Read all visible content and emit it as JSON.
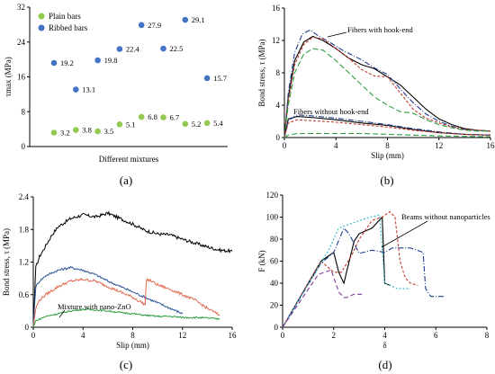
{
  "chart_data": [
    {
      "type": "scatter",
      "panel": "(a)",
      "caption": "(a)",
      "ylabel": "τmax (MPa)",
      "xlabel": "Different mixtures",
      "ylim": [
        0,
        32
      ],
      "yticks": [
        "0",
        "8",
        "16",
        "24",
        "32"
      ],
      "legend": "top-left",
      "series": [
        {
          "name": "Plain bars",
          "color": "#92c94f",
          "values": [
            3.2,
            3.8,
            3.5,
            5.1,
            6.8,
            6.7,
            5.2,
            5.4
          ],
          "labels": [
            "3.2",
            "3.8",
            "3.5",
            "5.1",
            "6.8",
            "6.7",
            "5.2",
            "5.4"
          ]
        },
        {
          "name": "Ribbed bars",
          "color": "#4472c4",
          "values": [
            19.2,
            13.1,
            19.8,
            22.4,
            27.9,
            22.5,
            29.1,
            15.7
          ],
          "labels": [
            "19.2",
            "13.1",
            "19.8",
            "22.4",
            "27.9",
            "22.5",
            "29.1",
            "15.7"
          ]
        }
      ]
    },
    {
      "type": "line",
      "panel": "(b)",
      "caption": "(b)",
      "ylabel": "Bond stress, τ (MPa)",
      "xlabel": "Slip (mm)",
      "xlim": [
        0,
        16
      ],
      "ylim": [
        0,
        16
      ],
      "xticks": [
        "0",
        "4",
        "8",
        "12",
        "16"
      ],
      "yticks": [
        "0",
        "4",
        "8",
        "12",
        "16"
      ],
      "annotations": [
        "Fibers with hook-end",
        "Fibers without hook-end"
      ],
      "series": [
        {
          "color": "#000000",
          "dash": "",
          "x": [
            0,
            0.3,
            0.8,
            1.5,
            2.2,
            3,
            4,
            5,
            6,
            7,
            8,
            9,
            10,
            11,
            12,
            13,
            14,
            15,
            16
          ],
          "y": [
            0,
            5,
            9.5,
            11.8,
            12.5,
            12,
            11,
            9.8,
            9,
            8.5,
            7.5,
            6.5,
            5,
            3.5,
            2.3,
            1.6,
            1.1,
            0.9,
            0.8
          ]
        },
        {
          "color": "#1f3b8c",
          "dash": "6 2 1 2",
          "x": [
            0,
            0.3,
            0.8,
            1.4,
            2,
            2.6,
            3.5,
            4.5,
            6,
            7,
            8,
            9,
            10,
            11,
            12,
            13,
            14,
            15,
            16
          ],
          "y": [
            0,
            5.5,
            10.5,
            12.8,
            13.3,
            12.6,
            11.8,
            10.8,
            9.6,
            8.6,
            7.8,
            6,
            4.3,
            2.9,
            2,
            1.4,
            1,
            0.9,
            0.8
          ]
        },
        {
          "color": "#c0392b",
          "dash": "3 2",
          "x": [
            0,
            0.3,
            0.8,
            1.5,
            2.2,
            3,
            4,
            5,
            6,
            7,
            8,
            9,
            10,
            11,
            12,
            13,
            14,
            15,
            16
          ],
          "y": [
            0,
            4.5,
            9,
            11.5,
            12.4,
            12.2,
            11,
            9.8,
            8.4,
            7.6,
            7.5,
            5.5,
            3.5,
            2.4,
            1.8,
            1.3,
            1,
            0.9,
            0.8
          ]
        },
        {
          "color": "#2e9e3e",
          "dash": "6 3",
          "x": [
            0,
            0.3,
            0.8,
            1.5,
            2.2,
            3,
            4,
            5,
            6,
            7,
            8,
            9,
            10,
            11,
            12,
            13,
            14,
            15,
            16
          ],
          "y": [
            0,
            4,
            8,
            10.3,
            11,
            10.8,
            9.5,
            8,
            6.5,
            5,
            4,
            3.2,
            3,
            2.2,
            1.6,
            1.2,
            0.9,
            0.8,
            0.8
          ]
        },
        {
          "color": "#000000",
          "dash": "",
          "x": [
            0,
            0.3,
            1,
            2,
            4,
            6,
            8,
            10,
            12,
            14,
            16
          ],
          "y": [
            0,
            2.3,
            2.6,
            2.5,
            2.2,
            1.8,
            1.5,
            1,
            0.6,
            0.4,
            0.3
          ]
        },
        {
          "color": "#1f3b8c",
          "dash": "6 2 1 2",
          "x": [
            0,
            0.3,
            1,
            2,
            4,
            6,
            8,
            10,
            12,
            14,
            16
          ],
          "y": [
            0,
            2.1,
            2.8,
            2.7,
            2.4,
            2,
            1.6,
            1.1,
            0.7,
            0.4,
            0.3
          ]
        },
        {
          "color": "#c0392b",
          "dash": "3 2",
          "x": [
            0,
            0.3,
            1,
            2,
            4,
            6,
            8,
            10,
            12,
            14,
            16
          ],
          "y": [
            0,
            1.8,
            2.2,
            2.1,
            1.9,
            1.6,
            1.3,
            0.9,
            0.6,
            0.4,
            0.3
          ]
        },
        {
          "color": "#2e9e3e",
          "dash": "6 3",
          "x": [
            0,
            0.3,
            1,
            2,
            4,
            6,
            8,
            10,
            12,
            14,
            16
          ],
          "y": [
            0,
            0.3,
            0.5,
            0.5,
            0.5,
            0.5,
            0.4,
            0.3,
            0.2,
            0.15,
            0.1
          ]
        }
      ]
    },
    {
      "type": "line",
      "panel": "(c)",
      "caption": "(c)",
      "ylabel": "Bond stress, τ (MPa)",
      "xlabel": "Slip (mm)",
      "xlim": [
        0,
        16
      ],
      "ylim": [
        0,
        2.4
      ],
      "xticks": [
        "0",
        "4",
        "8",
        "12",
        "16"
      ],
      "yticks": [
        "0",
        "0.6",
        "1.2",
        "1.8",
        "2.4"
      ],
      "annotations": [
        "Mixture with nano-ZnO"
      ],
      "series": [
        {
          "color": "#000000",
          "jitter": 0.03,
          "x": [
            0,
            0.2,
            0.5,
            1,
            1.5,
            2,
            3,
            4,
            5,
            6,
            7,
            8,
            9,
            10,
            11,
            12,
            13,
            14,
            15,
            16
          ],
          "y": [
            0,
            1.1,
            1.3,
            1.5,
            1.7,
            1.85,
            2.0,
            2.07,
            2.03,
            2.1,
            2.0,
            1.9,
            1.78,
            1.72,
            1.7,
            1.62,
            1.55,
            1.48,
            1.42,
            1.4
          ]
        },
        {
          "color": "#2f5597",
          "jitter": 0.02,
          "x": [
            0,
            0.2,
            0.5,
            1,
            2,
            3,
            4,
            5,
            6,
            7,
            8,
            9,
            10,
            11,
            12
          ],
          "y": [
            0,
            0.75,
            0.85,
            0.95,
            1.05,
            1.1,
            1.05,
            0.97,
            0.85,
            0.75,
            0.65,
            0.55,
            0.45,
            0.35,
            0.25
          ]
        },
        {
          "color": "#e06a4e",
          "jitter": 0.025,
          "x": [
            0,
            0.2,
            0.5,
            1,
            2,
            3,
            4,
            5,
            6,
            7,
            8,
            9,
            9.1,
            9.5,
            10,
            11,
            12,
            13,
            14,
            15
          ],
          "y": [
            0,
            0.35,
            0.5,
            0.6,
            0.75,
            0.85,
            0.88,
            0.85,
            0.75,
            0.65,
            0.55,
            0.42,
            0.88,
            0.85,
            0.78,
            0.7,
            0.6,
            0.5,
            0.35,
            0.22
          ]
        },
        {
          "color": "#2e9e3e",
          "jitter": 0.015,
          "x": [
            0,
            0.2,
            0.5,
            1,
            2,
            3,
            4,
            5,
            6,
            7,
            8,
            9,
            10,
            11,
            12,
            13,
            14,
            15
          ],
          "y": [
            0,
            0.12,
            0.15,
            0.2,
            0.25,
            0.3,
            0.33,
            0.32,
            0.3,
            0.27,
            0.25,
            0.22,
            0.2,
            0.2,
            0.18,
            0.18,
            0.17,
            0.15
          ]
        }
      ]
    },
    {
      "type": "line",
      "panel": "(d)",
      "caption": "(d)",
      "ylabel": "F (kN)",
      "xlabel": "δ",
      "xlim": [
        0,
        8
      ],
      "ylim": [
        0,
        120
      ],
      "xticks": [
        "0",
        "2",
        "4",
        "6",
        "8"
      ],
      "yticks": [
        "0",
        "20",
        "40",
        "60",
        "80",
        "100",
        "120"
      ],
      "annotations": [
        "Beams without nanoparticles"
      ],
      "series": [
        {
          "color": "#000000",
          "dash": "",
          "x": [
            0,
            1.5,
            2.0,
            2.2,
            2.4,
            2.8,
            3.0,
            3.5,
            3.9,
            4.0,
            4.2
          ],
          "y": [
            0,
            60,
            68,
            50,
            40,
            78,
            85,
            90,
            100,
            40,
            38
          ]
        },
        {
          "color": "#c0392b",
          "dash": "3 2",
          "x": [
            0,
            1.5,
            2.0,
            2.3,
            2.7,
            3.0,
            3.5,
            3.9,
            4.2,
            4.4,
            4.6,
            4.8,
            5.0,
            5.3
          ],
          "y": [
            0,
            60,
            50,
            50,
            65,
            80,
            97,
            100,
            105,
            100,
            60,
            45,
            40,
            38
          ]
        },
        {
          "color": "#1f3b8c",
          "dash": "6 2 1 2",
          "x": [
            0,
            1.5,
            2.0,
            2.4,
            2.6,
            3.0,
            3.5,
            4.0,
            4.3,
            5.0,
            5.5,
            5.6,
            5.8,
            6.3
          ],
          "y": [
            0,
            58,
            68,
            90,
            85,
            67,
            70,
            68,
            72,
            72,
            68,
            35,
            28,
            28
          ]
        },
        {
          "color": "#2fb7c4",
          "dash": "2 2",
          "x": [
            0,
            1.8,
            2.2,
            2.8,
            3.4,
            3.8,
            4.0,
            4.5,
            5.0
          ],
          "y": [
            0,
            70,
            90,
            95,
            100,
            102,
            40,
            35,
            35
          ]
        },
        {
          "color": "#7d3c98",
          "dash": "5 3",
          "x": [
            0,
            1.4,
            1.9,
            2.2,
            2.4,
            2.5,
            2.8,
            3.2
          ],
          "y": [
            0,
            48,
            52,
            32,
            27,
            27,
            30,
            30
          ]
        }
      ]
    }
  ]
}
